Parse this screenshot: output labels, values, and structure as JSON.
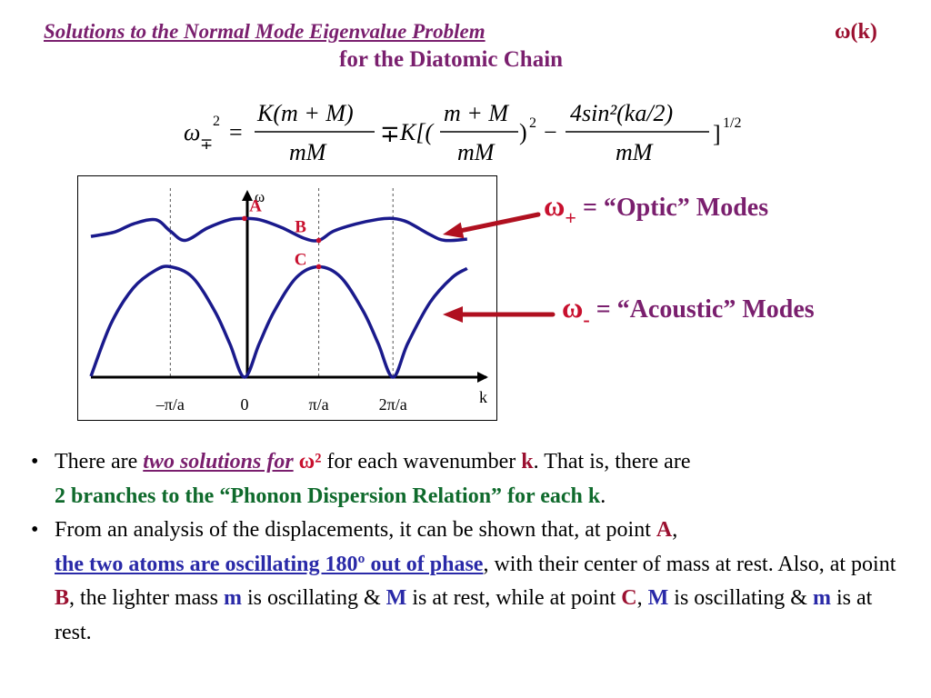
{
  "header": {
    "title": "Solutions to the Normal Mode Eigenvalue Problem",
    "omega_k": "ω(k)",
    "subtitle": "for the Diatomic Chain"
  },
  "formula": {
    "lhs": "ω",
    "lhs_sub": "∓",
    "lhs_sup": "2",
    "eq": "=",
    "frac1_num": "K(m + M)",
    "frac1_den": "mM",
    "pm": "∓",
    "k_bracket": "K[(",
    "frac2_num": "m + M",
    "frac2_den": "mM",
    "close_sq": ")",
    "sq": "2",
    "minus": "−",
    "frac3_num": "4sin²(ka/2)",
    "frac3_den": "mM",
    "close_bracket": "]",
    "power": "1/2"
  },
  "chart_data": {
    "type": "line",
    "title": "",
    "xlabel": "k",
    "ylabel": "ω",
    "x_ticks": [
      "–π/a",
      "0",
      "π/a",
      "2π/a"
    ],
    "xlim": [
      -2.07,
      3.1
    ],
    "ylim": [
      0,
      1.0
    ],
    "series": [
      {
        "name": "ω+",
        "points": [
          [
            -2.07,
            0.79
          ],
          [
            -1.75,
            0.815
          ],
          [
            -1.5,
            0.86
          ],
          [
            -1.2,
            0.884
          ],
          [
            -1.0,
            0.82
          ],
          [
            -0.8,
            0.768
          ],
          [
            -0.5,
            0.837
          ],
          [
            -0.2,
            0.884
          ],
          [
            0,
            0.891
          ],
          [
            0.2,
            0.884
          ],
          [
            0.5,
            0.84
          ],
          [
            0.8,
            0.78
          ],
          [
            1.0,
            0.768
          ],
          [
            1.2,
            0.82
          ],
          [
            1.5,
            0.86
          ],
          [
            1.8,
            0.886
          ],
          [
            2.0,
            0.891
          ],
          [
            2.2,
            0.87
          ],
          [
            2.5,
            0.8
          ],
          [
            2.7,
            0.768
          ],
          [
            3.0,
            0.775
          ]
        ]
      },
      {
        "name": "ω-",
        "points": [
          [
            -2.07,
            0.005
          ],
          [
            -1.8,
            0.3
          ],
          [
            -1.5,
            0.5
          ],
          [
            -1.2,
            0.6
          ],
          [
            -1.0,
            0.62
          ],
          [
            -0.7,
            0.56
          ],
          [
            -0.4,
            0.37
          ],
          [
            -0.2,
            0.19
          ],
          [
            0,
            0.0
          ],
          [
            0.2,
            0.19
          ],
          [
            0.4,
            0.37
          ],
          [
            0.7,
            0.56
          ],
          [
            1.0,
            0.62
          ],
          [
            1.3,
            0.56
          ],
          [
            1.6,
            0.37
          ],
          [
            1.8,
            0.19
          ],
          [
            2.0,
            0.0
          ],
          [
            2.2,
            0.19
          ],
          [
            2.5,
            0.42
          ],
          [
            2.8,
            0.56
          ],
          [
            3.0,
            0.61
          ]
        ]
      }
    ],
    "points": [
      {
        "label": "A",
        "x": 0,
        "y": 0.891
      },
      {
        "label": "B",
        "x": 1.0,
        "y": 0.768
      },
      {
        "label": "C",
        "x": 1.0,
        "y": 0.62
      }
    ],
    "colors": {
      "curve": "#1a1a8c",
      "point": "#c8102e",
      "axis": "#000000"
    }
  },
  "modes": {
    "optic_symbol": "ω",
    "optic_sub": "+",
    "optic_text": " =  “Optic” Modes",
    "acoustic_symbol": "ω",
    "acoustic_sub": "-",
    "acoustic_text": " = “Acoustic” Modes",
    "arrow_color": "#b01020"
  },
  "bullets": {
    "b1": {
      "p1": "There are ",
      "p2": "two solutions for",
      "p3": "ω²",
      "p4": " for each wavenumber ",
      "p5": "k",
      "p6": ". That is, there are",
      "p7": "2 branches to the “Phonon Dispersion Relation” for each k",
      "p8": "."
    },
    "b2": {
      "p1": "From an analysis of the displacements, it can be shown that, at point ",
      "p2": "A",
      "p3": ",",
      "p4": "the two atoms are oscillating 180º out of phase",
      "p5": ", with their center of mass at rest.  Also, at point ",
      "p6": "B",
      "p7": ", the lighter mass ",
      "p8": "m",
      "p9": " is oscillating & ",
      "p10": "M",
      "p11": " is at rest, while at point ",
      "p12": "C",
      "p13": ", ",
      "p14": "M",
      "p15": " is oscillating & ",
      "p16": "m",
      "p17": " is at rest."
    },
    "bullet_char": "•"
  }
}
